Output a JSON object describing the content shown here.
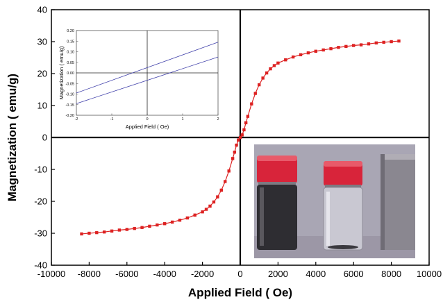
{
  "chart_data": [
    {
      "type": "scatter",
      "title": "",
      "xlabel": "Applied Field ( Oe)",
      "ylabel": "Magnetization ( emu/g)",
      "xlim": [
        -10000,
        10000
      ],
      "ylim": [
        -40,
        40
      ],
      "x_ticks": [
        "-10000",
        "-8000",
        "-6000",
        "-4000",
        "-2000",
        "0",
        "2000",
        "4000",
        "6000",
        "8000",
        "10000"
      ],
      "y_ticks": [
        "-40",
        "-30",
        "-20",
        "-10",
        "0",
        "10",
        "20",
        "30",
        "40"
      ],
      "grid": false,
      "series": [
        {
          "color": "#dd2222",
          "marker": "square",
          "x": [
            -8400,
            -8000,
            -7600,
            -7200,
            -6800,
            -6400,
            -6000,
            -5600,
            -5200,
            -4800,
            -4400,
            -4000,
            -3600,
            -3200,
            -2800,
            -2400,
            -2000,
            -1800,
            -1600,
            -1400,
            -1200,
            -1000,
            -800,
            -600,
            -400,
            -300,
            -200,
            -100,
            0,
            100,
            200,
            300,
            400,
            600,
            800,
            1000,
            1200,
            1400,
            1600,
            1800,
            2000,
            2400,
            2800,
            3200,
            3600,
            4000,
            4400,
            4800,
            5200,
            5600,
            6000,
            6400,
            6800,
            7200,
            7600,
            8000,
            8400
          ],
          "y": [
            -30.2,
            -30.0,
            -29.8,
            -29.6,
            -29.3,
            -29.0,
            -28.8,
            -28.5,
            -28.2,
            -27.8,
            -27.4,
            -27.0,
            -26.5,
            -25.9,
            -25.2,
            -24.3,
            -23.3,
            -22.5,
            -21.5,
            -20.2,
            -18.6,
            -16.5,
            -13.8,
            -10.5,
            -6.6,
            -4.6,
            -2.4,
            -0.8,
            0.0,
            0.8,
            2.4,
            4.6,
            6.6,
            10.5,
            13.8,
            16.5,
            18.6,
            20.2,
            21.5,
            22.5,
            23.3,
            24.3,
            25.2,
            25.9,
            26.5,
            27.0,
            27.4,
            27.8,
            28.2,
            28.5,
            28.8,
            29.0,
            29.3,
            29.6,
            29.8,
            30.0,
            30.2
          ]
        }
      ]
    },
    {
      "type": "line",
      "title": "",
      "xlabel": "Applied Field ( Oe)",
      "ylabel": "Magnetization ( emu/g)",
      "xlim": [
        -2,
        2
      ],
      "ylim": [
        -0.2,
        0.2
      ],
      "x_ticks": [
        "-2",
        "-1",
        "0",
        "1",
        "2"
      ],
      "y_ticks": [
        "0.20",
        "0.15",
        "0.10",
        "0.05",
        "0.00",
        "-0.05",
        "-0.10",
        "-0.15",
        "-0.20"
      ],
      "grid": false,
      "series": [
        {
          "color": "#4040aa",
          "x": [
            -2,
            2
          ],
          "y": [
            -0.095,
            0.145
          ]
        },
        {
          "color": "#4040aa",
          "x": [
            -2,
            2
          ],
          "y": [
            -0.145,
            0.075
          ]
        }
      ]
    }
  ],
  "photo": {
    "description_icons": [
      "vial-with-red-cap-dark",
      "vial-with-red-cap-clear",
      "magnet-block"
    ]
  }
}
